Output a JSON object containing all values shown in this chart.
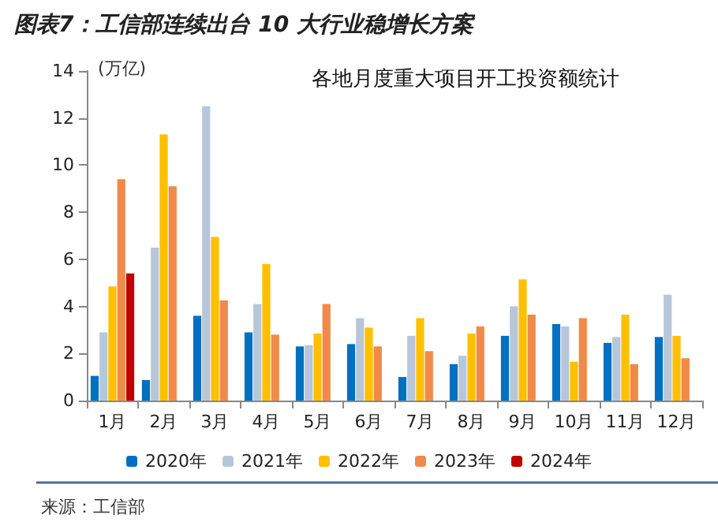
{
  "chart_data": {
    "type": "bar",
    "title": "图表7：工信部连续出台 10 大行业稳增长方案",
    "subtitle": "各地月度重大项目开工投资额统计",
    "ylabel": "(万亿)",
    "categories": [
      "1月",
      "2月",
      "3月",
      "4月",
      "5月",
      "6月",
      "7月",
      "8月",
      "9月",
      "10月",
      "11月",
      "12月"
    ],
    "series": [
      {
        "name": "2020年",
        "color": "#0070c0",
        "values": [
          1.05,
          0.87,
          3.6,
          2.9,
          2.3,
          2.4,
          1.0,
          1.55,
          2.75,
          3.25,
          2.45,
          2.7
        ]
      },
      {
        "name": "2021年",
        "color": "#b8c6dc",
        "values": [
          2.9,
          6.5,
          12.5,
          4.1,
          2.35,
          3.5,
          2.75,
          1.9,
          4.0,
          3.15,
          2.7,
          4.5
        ]
      },
      {
        "name": "2022年",
        "color": "#ffc000",
        "values": [
          4.85,
          11.3,
          6.95,
          5.8,
          2.85,
          3.1,
          3.5,
          2.85,
          5.15,
          1.65,
          3.65,
          2.75
        ]
      },
      {
        "name": "2023年",
        "color": "#f08a4b",
        "values": [
          9.4,
          9.1,
          4.25,
          2.8,
          4.1,
          2.3,
          2.1,
          3.15,
          3.65,
          3.5,
          1.55,
          1.8
        ]
      },
      {
        "name": "2024年",
        "color": "#c00000",
        "values": [
          5.4,
          null,
          null,
          null,
          null,
          null,
          null,
          null,
          null,
          null,
          null,
          null
        ]
      }
    ],
    "ylim": [
      0,
      14
    ],
    "yticks": [
      0,
      2,
      4,
      6,
      8,
      10,
      12,
      14
    ],
    "grid": false,
    "legend": "bottom",
    "annotations": [
      "来源：工信部"
    ]
  }
}
